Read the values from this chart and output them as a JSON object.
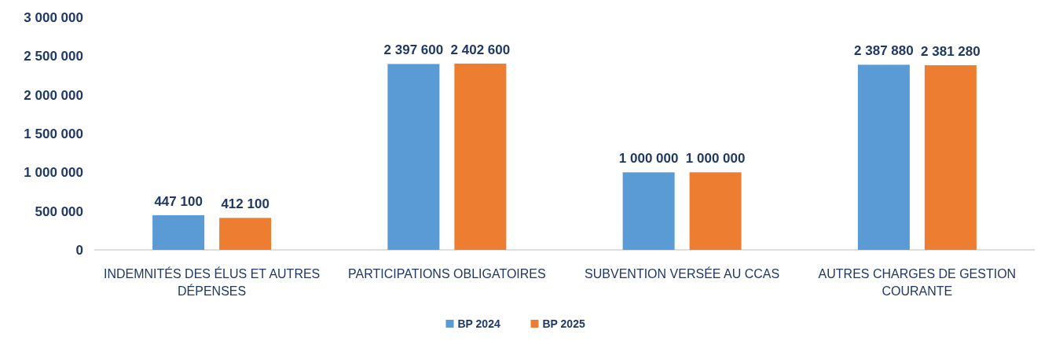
{
  "chart_data": {
    "type": "bar",
    "categories": [
      "INDEMNITÉS DES ÉLUS ET AUTRES DÉPENSES",
      "PARTICIPATIONS OBLIGATOIRES",
      "SUBVENTION VERSÉE AU CCAS",
      "AUTRES CHARGES DE GESTION COURANTE"
    ],
    "series": [
      {
        "name": "BP 2024",
        "color": "#5b9bd5",
        "values": [
          447100,
          2397600,
          1000000,
          2387880
        ],
        "value_labels": [
          "447 100",
          "2 397 600",
          "1 000 000",
          "2 387 880"
        ]
      },
      {
        "name": "BP 2025",
        "color": "#ed7d31",
        "values": [
          412100,
          2402600,
          1000000,
          2381280
        ],
        "value_labels": [
          "412 100",
          "2 402 600",
          "1 000 000",
          "2 381 280"
        ]
      }
    ],
    "ylim": [
      0,
      3000000
    ],
    "yticks": [
      {
        "value": 0,
        "label": "0"
      },
      {
        "value": 500000,
        "label": "500 000"
      },
      {
        "value": 1000000,
        "label": "1 000 000"
      },
      {
        "value": 1500000,
        "label": "1 500 000"
      },
      {
        "value": 2000000,
        "label": "2 000 000"
      },
      {
        "value": 2500000,
        "label": "2 500 000"
      },
      {
        "value": 3000000,
        "label": "3 000 000"
      }
    ],
    "grid": false,
    "legend": "bottom"
  }
}
